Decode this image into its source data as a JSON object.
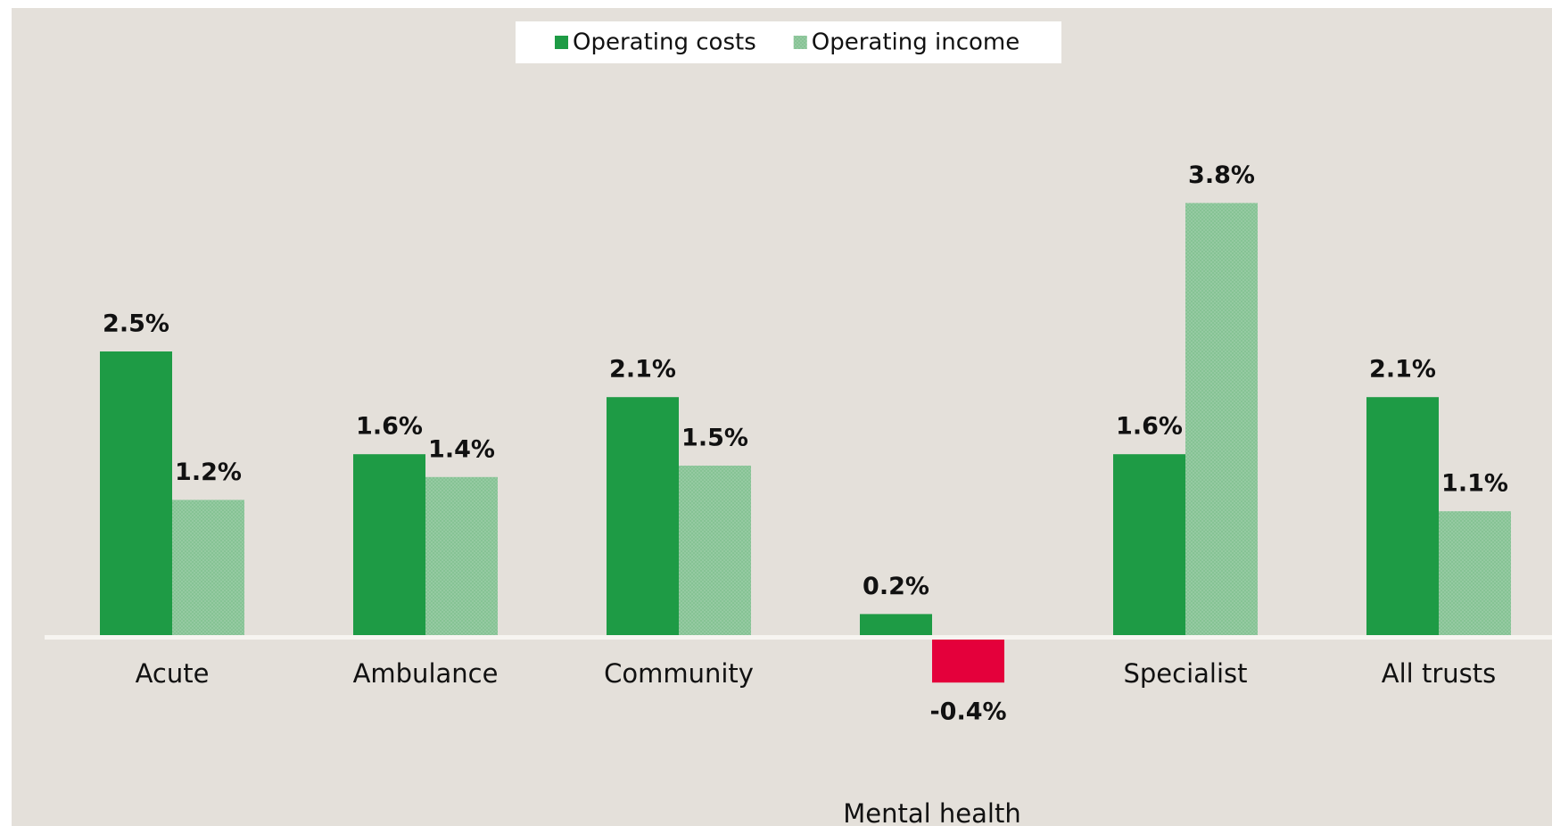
{
  "chart_data": {
    "type": "bar",
    "categories": [
      "Acute",
      "Ambulance",
      "Community",
      "Mental health",
      "Specialist",
      "All trusts"
    ],
    "series": [
      {
        "name": "Operating costs",
        "color": "#1e9b45",
        "values": [
          2.5,
          1.6,
          2.1,
          0.2,
          1.6,
          2.1
        ],
        "value_labels": [
          "2.5%",
          "1.6%",
          "2.1%",
          "0.2%",
          "1.6%",
          "2.1%"
        ]
      },
      {
        "name": "Operating income",
        "color": "#80c08f",
        "values": [
          1.2,
          1.4,
          1.5,
          -0.4,
          3.8,
          1.1
        ],
        "value_labels": [
          "1.2%",
          "1.4%",
          "1.5%",
          "-0.4%",
          "3.8%",
          "1.1%"
        ]
      }
    ],
    "negative_color": "#e4003b",
    "ylim": [
      -0.5,
      4.5
    ],
    "legend": "top"
  }
}
